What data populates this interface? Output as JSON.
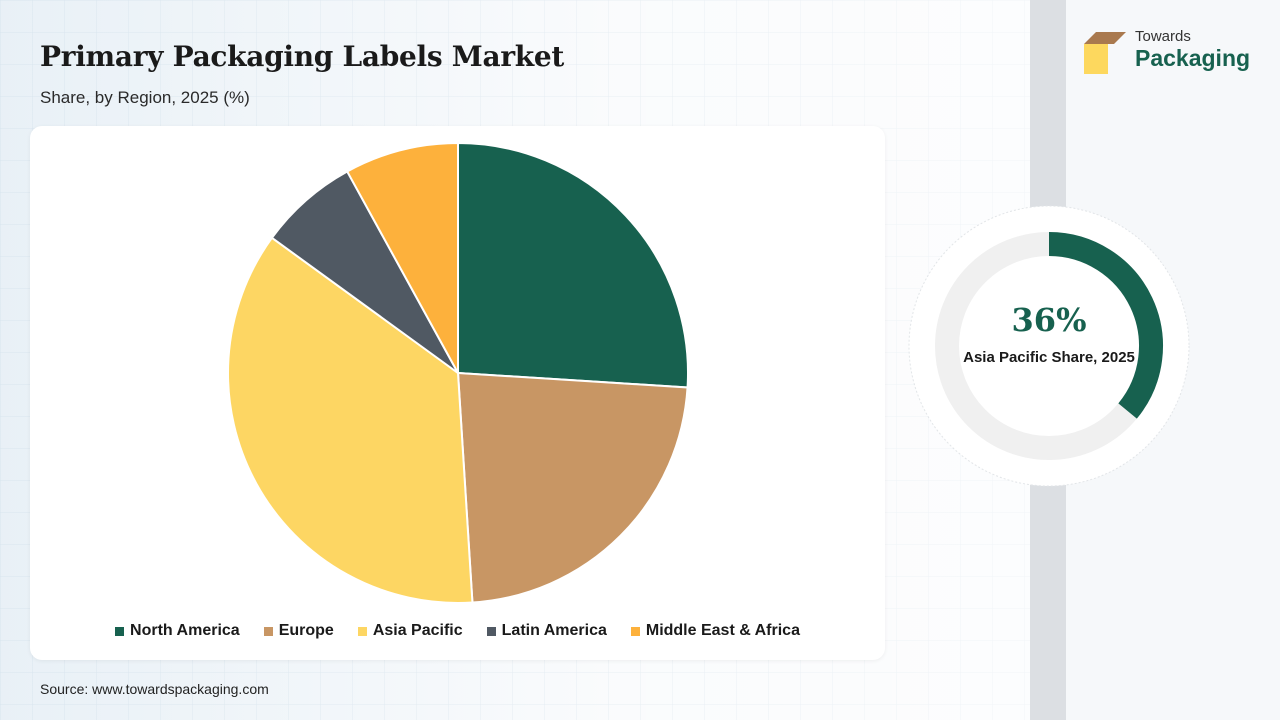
{
  "header": {
    "title": "Primary Packaging Labels Market",
    "subtitle": "Share, by Region, 2025 (%)"
  },
  "logo": {
    "line1": "Towards",
    "line2": "Packaging",
    "colors": {
      "top": "#a9794e",
      "front": "#fdd85e",
      "side": "#e8b93a"
    }
  },
  "chart_data": {
    "type": "pie",
    "categories": [
      "North America",
      "Europe",
      "Asia Pacific",
      "Latin America",
      "Middle East & Africa"
    ],
    "values": [
      26,
      23,
      36,
      7,
      8
    ],
    "colors": [
      "#17614f",
      "#c89664",
      "#fdd663",
      "#505963",
      "#fdb13c"
    ],
    "legend_position": "bottom"
  },
  "highlight": {
    "value": "36%",
    "fraction": 0.36,
    "label": "Asia Pacific Share, 2025",
    "ring_color": "#17614f",
    "track_color": "#f0f0f0"
  },
  "footer": {
    "source": "Source: www.towardspackaging.com"
  }
}
